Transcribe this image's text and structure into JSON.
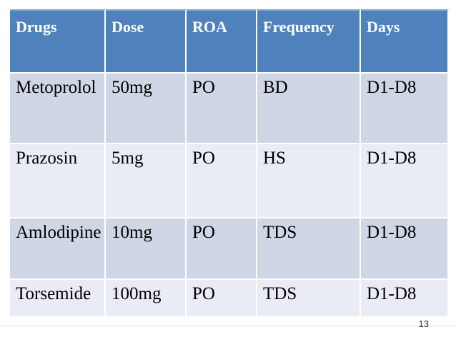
{
  "page": {
    "background": "#ffffff",
    "slide_number": "13"
  },
  "table": {
    "columns": [
      {
        "label": "Drugs"
      },
      {
        "label": "Dose"
      },
      {
        "label": "ROA"
      },
      {
        "label": "Frequency"
      },
      {
        "label": "Days"
      }
    ],
    "rows": [
      {
        "cells": [
          "Metoprolol",
          "50mg",
          "PO",
          "BD",
          "D1-D8"
        ]
      },
      {
        "cells": [
          "Prazosin",
          "5mg",
          "PO",
          "HS",
          "D1-D8"
        ]
      },
      {
        "cells": [
          "Amlodipine",
          "10mg",
          "PO",
          "TDS",
          "D1-D8"
        ]
      },
      {
        "cells": [
          "Torsemide",
          "100mg",
          "PO",
          "TDS",
          "D1-D8"
        ]
      }
    ],
    "colors": {
      "header_bg": "#4f81bd",
      "header_text": "#ffffff",
      "band_dark": "#cfd6e5",
      "band_light": "#e9ecf4",
      "body_text": "#000000",
      "divider": "#ffffff",
      "footer_line": "#dfe1e5",
      "page_number_color": "#333333"
    }
  }
}
